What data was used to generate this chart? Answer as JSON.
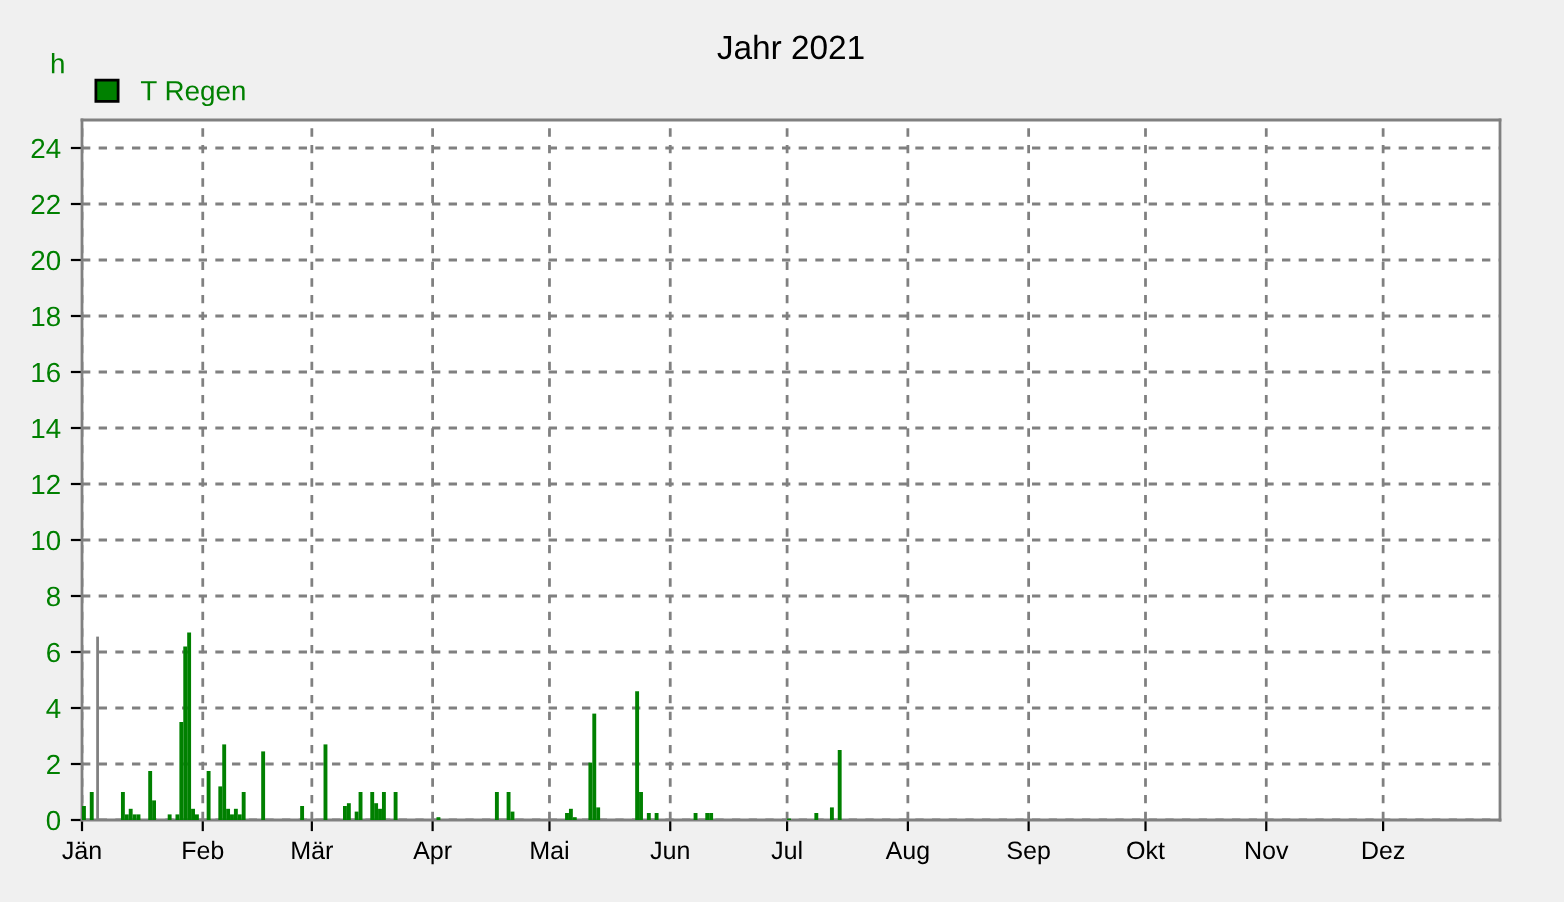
{
  "chart_data": {
    "type": "bar",
    "title": "Jahr 2021",
    "ylabel": "h",
    "series": [
      {
        "name": "T Regen",
        "color": "#008000",
        "x": [
          "2021-01-01",
          "2021-01-03",
          "2021-01-11",
          "2021-01-12",
          "2021-01-13",
          "2021-01-14",
          "2021-01-15",
          "2021-01-18",
          "2021-01-19",
          "2021-01-23",
          "2021-01-25",
          "2021-01-26",
          "2021-01-27",
          "2021-01-28",
          "2021-01-29",
          "2021-01-30",
          "2021-02-02",
          "2021-02-05",
          "2021-02-06",
          "2021-02-07",
          "2021-02-08",
          "2021-02-09",
          "2021-02-10",
          "2021-02-11",
          "2021-02-16",
          "2021-02-26",
          "2021-03-04",
          "2021-03-09",
          "2021-03-10",
          "2021-03-12",
          "2021-03-13",
          "2021-03-16",
          "2021-03-17",
          "2021-03-18",
          "2021-03-19",
          "2021-03-22",
          "2021-04-02",
          "2021-04-17",
          "2021-04-20",
          "2021-04-21",
          "2021-05-05",
          "2021-05-06",
          "2021-05-07",
          "2021-05-11",
          "2021-05-12",
          "2021-05-13",
          "2021-05-23",
          "2021-05-24",
          "2021-05-26",
          "2021-05-28",
          "2021-06-07",
          "2021-06-10",
          "2021-06-11",
          "2021-07-01",
          "2021-07-08",
          "2021-07-12",
          "2021-07-14"
        ],
        "values": [
          0.5,
          1.0,
          1.0,
          0.2,
          0.4,
          0.2,
          0.2,
          1.75,
          0.7,
          0.2,
          0.2,
          3.5,
          6.2,
          6.7,
          0.4,
          0.2,
          1.75,
          1.2,
          2.7,
          0.4,
          0.2,
          0.4,
          0.2,
          1.0,
          2.45,
          0.5,
          2.7,
          0.5,
          0.6,
          0.3,
          1.0,
          1.0,
          0.6,
          0.4,
          1.0,
          1.0,
          0.1,
          1.0,
          1.0,
          0.3,
          0.25,
          0.4,
          0.1,
          2.05,
          3.8,
          0.45,
          4.6,
          1.0,
          0.25,
          0.25,
          0.25,
          0.25,
          0.25,
          0.05,
          0.25,
          0.45,
          2.5
        ]
      },
      {
        "color": "#808080",
        "x": [
          "2021-01-05",
          "2021-01-05"
        ],
        "values": [
          0,
          6.5
        ],
        "type": "line",
        "line_style": "solid"
      }
    ],
    "xlim": [
      "2021-01-01",
      "2021-12-31"
    ],
    "xticks": [
      {
        "value": "2021-01-01",
        "label": "Jän"
      },
      {
        "value": "2021-02-01",
        "label": "Feb"
      },
      {
        "value": "2021-03-01",
        "label": "Mär"
      },
      {
        "value": "2021-04-01",
        "label": "Apr"
      },
      {
        "value": "2021-05-01",
        "label": "Mai"
      },
      {
        "value": "2021-06-01",
        "label": "Jun"
      },
      {
        "value": "2021-07-01",
        "label": "Jul"
      },
      {
        "value": "2021-08-01",
        "label": "Aug"
      },
      {
        "value": "2021-09-01",
        "label": "Sep"
      },
      {
        "value": "2021-10-01",
        "label": "Okt"
      },
      {
        "value": "2021-11-01",
        "label": "Nov"
      },
      {
        "value": "2021-12-01",
        "label": "Dez"
      }
    ],
    "ylim": [
      0,
      25
    ],
    "yticks": [
      0,
      2,
      4,
      6,
      8,
      10,
      12,
      14,
      16,
      18,
      20,
      22,
      24
    ],
    "grid": true,
    "legend": "top left"
  }
}
